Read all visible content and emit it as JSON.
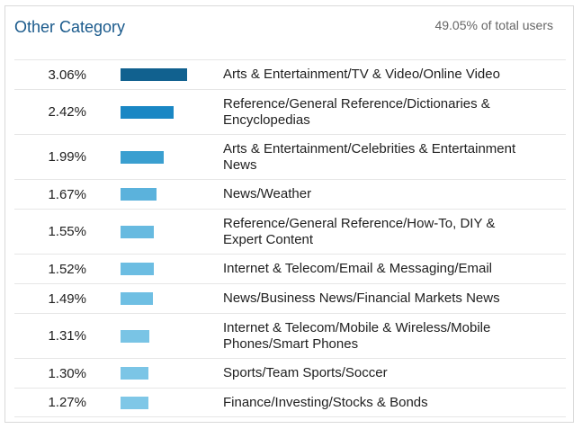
{
  "header": {
    "title": "Other Category",
    "summary": "49.05% of total users"
  },
  "colors": {
    "title": "#1a5a8c",
    "bar_shades": [
      "#11618f",
      "#1a87c4",
      "#3a9fd0",
      "#5bb2dc",
      "#67bae0",
      "#6cbde2",
      "#6fbfe3",
      "#79c4e5",
      "#7bc5e6",
      "#7fc7e7"
    ]
  },
  "rows": [
    {
      "percent": "3.06%",
      "value": 3.06,
      "label": "Arts & Entertainment/TV & Video/Online Video",
      "lines": 1
    },
    {
      "percent": "2.42%",
      "value": 2.42,
      "label": "Reference/General Reference/Dictionaries & Encyclopedias",
      "lines": 2
    },
    {
      "percent": "1.99%",
      "value": 1.99,
      "label": "Arts & Entertainment/Celebrities & Entertainment News",
      "lines": 2
    },
    {
      "percent": "1.67%",
      "value": 1.67,
      "label": "News/Weather",
      "lines": 1
    },
    {
      "percent": "1.55%",
      "value": 1.55,
      "label": "Reference/General Reference/How-To, DIY & Expert Content",
      "lines": 2
    },
    {
      "percent": "1.52%",
      "value": 1.52,
      "label": "Internet & Telecom/Email & Messaging/Email",
      "lines": 1
    },
    {
      "percent": "1.49%",
      "value": 1.49,
      "label": "News/Business News/Financial Markets News",
      "lines": 1
    },
    {
      "percent": "1.31%",
      "value": 1.31,
      "label": "Internet & Telecom/Mobile & Wireless/Mobile Phones/Smart Phones",
      "lines": 2
    },
    {
      "percent": "1.30%",
      "value": 1.3,
      "label": "Sports/Team Sports/Soccer",
      "lines": 1
    },
    {
      "percent": "1.27%",
      "value": 1.27,
      "label": "Finance/Investing/Stocks & Bonds",
      "lines": 1
    }
  ]
}
